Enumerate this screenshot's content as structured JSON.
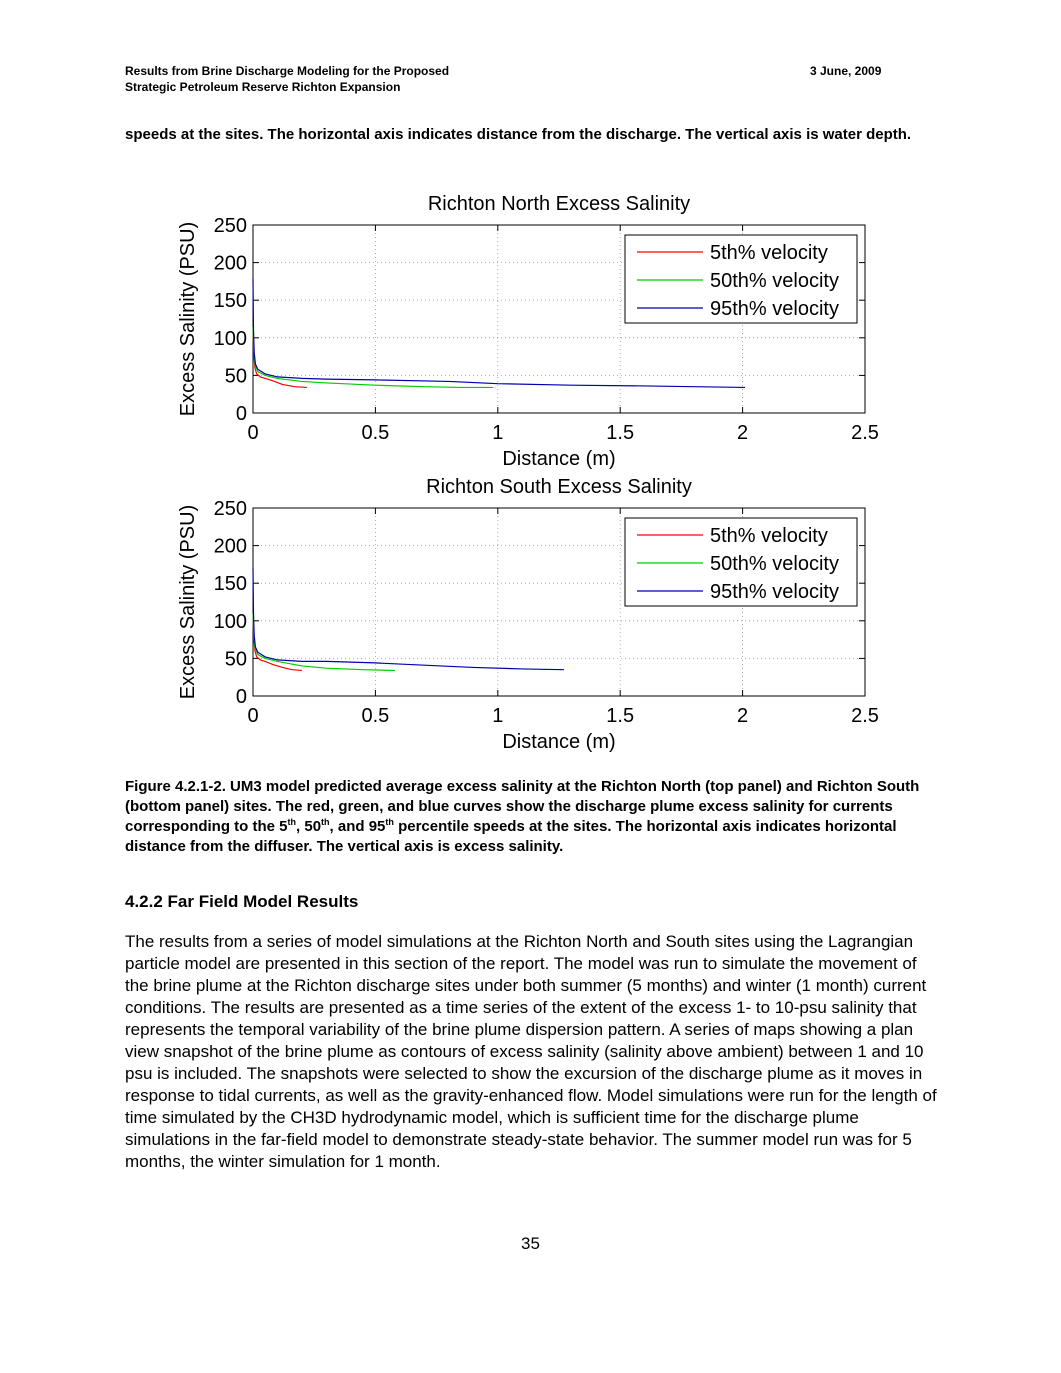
{
  "header": {
    "title_line1": "Results from Brine Discharge Modeling for the Proposed",
    "title_line2": "Strategic Petroleum Reserve Richton Expansion",
    "date": "3 June, 2009"
  },
  "continuation": "speeds at the sites.  The horizontal axis indicates distance from the discharge.  The vertical axis is water depth.",
  "chart_data": [
    {
      "type": "line",
      "title": "Richton North Excess Salinity",
      "xlabel": "Distance (m)",
      "ylabel": "Excess Salinity (PSU)",
      "xlim": [
        0,
        2.5
      ],
      "ylim": [
        0,
        250
      ],
      "xticks": [
        "0",
        "0.5",
        "1",
        "1.5",
        "2",
        "2.5"
      ],
      "yticks": [
        "0",
        "50",
        "100",
        "150",
        "200",
        "250"
      ],
      "grid": true,
      "legend_position": "top-right",
      "series": [
        {
          "name": "5th% velocity",
          "color": "#ff0000",
          "x": [
            0,
            0.003,
            0.008,
            0.015,
            0.03,
            0.05,
            0.08,
            0.12,
            0.17,
            0.22
          ],
          "y": [
            110,
            80,
            60,
            52,
            48,
            46,
            43,
            38,
            35,
            34
          ]
        },
        {
          "name": "50th% velocity",
          "color": "#00cc00",
          "x": [
            0,
            0.003,
            0.008,
            0.02,
            0.05,
            0.1,
            0.2,
            0.3,
            0.5,
            0.7,
            0.85,
            0.98
          ],
          "y": [
            115,
            85,
            65,
            55,
            50,
            46,
            42,
            40,
            37,
            35,
            34,
            34
          ]
        },
        {
          "name": "95th% velocity",
          "color": "#0000aa",
          "x": [
            0,
            0.002,
            0.005,
            0.01,
            0.02,
            0.05,
            0.1,
            0.2,
            0.3,
            0.5,
            0.8,
            1.0,
            1.3,
            1.6,
            1.8,
            2.01
          ],
          "y": [
            178,
            110,
            80,
            65,
            58,
            52,
            48,
            46,
            45,
            44,
            42,
            39,
            37,
            36,
            35,
            34
          ]
        }
      ]
    },
    {
      "type": "line",
      "title": "Richton South Excess Salinity",
      "xlabel": "Distance (m)",
      "ylabel": "Excess Salinity (PSU)",
      "xlim": [
        0,
        2.5
      ],
      "ylim": [
        0,
        250
      ],
      "xticks": [
        "0",
        "0.5",
        "1",
        "1.5",
        "2",
        "2.5"
      ],
      "yticks": [
        "0",
        "50",
        "100",
        "150",
        "200",
        "250"
      ],
      "grid": true,
      "legend_position": "top-right",
      "series": [
        {
          "name": "5th% velocity",
          "color": "#ff0000",
          "x": [
            0,
            0.003,
            0.008,
            0.015,
            0.03,
            0.05,
            0.08,
            0.12,
            0.16,
            0.2
          ],
          "y": [
            105,
            78,
            60,
            52,
            48,
            46,
            42,
            38,
            35,
            34
          ]
        },
        {
          "name": "50th% velocity",
          "color": "#00cc00",
          "x": [
            0,
            0.003,
            0.008,
            0.02,
            0.05,
            0.1,
            0.2,
            0.3,
            0.45,
            0.58
          ],
          "y": [
            110,
            82,
            64,
            55,
            50,
            46,
            40,
            37,
            35,
            34
          ]
        },
        {
          "name": "95th% velocity",
          "color": "#0000aa",
          "x": [
            0,
            0.002,
            0.005,
            0.01,
            0.02,
            0.05,
            0.1,
            0.2,
            0.3,
            0.5,
            0.7,
            0.9,
            1.1,
            1.27
          ],
          "y": [
            170,
            110,
            80,
            65,
            58,
            52,
            48,
            46,
            46,
            44,
            41,
            38,
            36,
            35
          ]
        }
      ]
    }
  ],
  "caption": {
    "label": "Figure 4.2.1-2.",
    "p1": "  UM3 model predicted average excess salinity at the Richton North (top panel) and Richton South (bottom panel) sites.  The red, green, and blue curves show the discharge plume excess salinity for currents corresponding to the 5",
    "sup1": "th",
    "p2": ", 50",
    "sup2": "th",
    "p3": ", and 95",
    "sup3": "th",
    "p4": " percentile speeds at the sites.  The horizontal axis indicates horizontal distance from the diffuser.  The vertical axis is excess salinity."
  },
  "section": {
    "heading": "4.2.2 Far Field Model Results",
    "paragraph": "The results from a series of model simulations at the Richton North and South sites using the Lagrangian particle model are presented in this section of the report.  The model was run to simulate the movement of the brine plume at the Richton discharge sites under both summer (5 months) and winter (1 month) current conditions.  The results are presented as a time series of the extent of the excess 1- to 10-psu salinity that represents the temporal variability of the brine plume dispersion pattern.  A series of maps showing a plan view snapshot of the brine plume as contours of excess salinity (salinity above ambient) between 1 and 10 psu is included.  The snapshots were selected to show the excursion of the discharge plume as it moves in response to tidal currents, as well as the gravity-enhanced flow.  Model simulations were run for the length of time simulated by the CH3D hydrodynamic model, which is sufficient time for the discharge plume simulations in the far-field model to demonstrate steady-state behavior.  The summer model run was for 5 months, the winter simulation for 1 month."
  },
  "page_number": "35"
}
